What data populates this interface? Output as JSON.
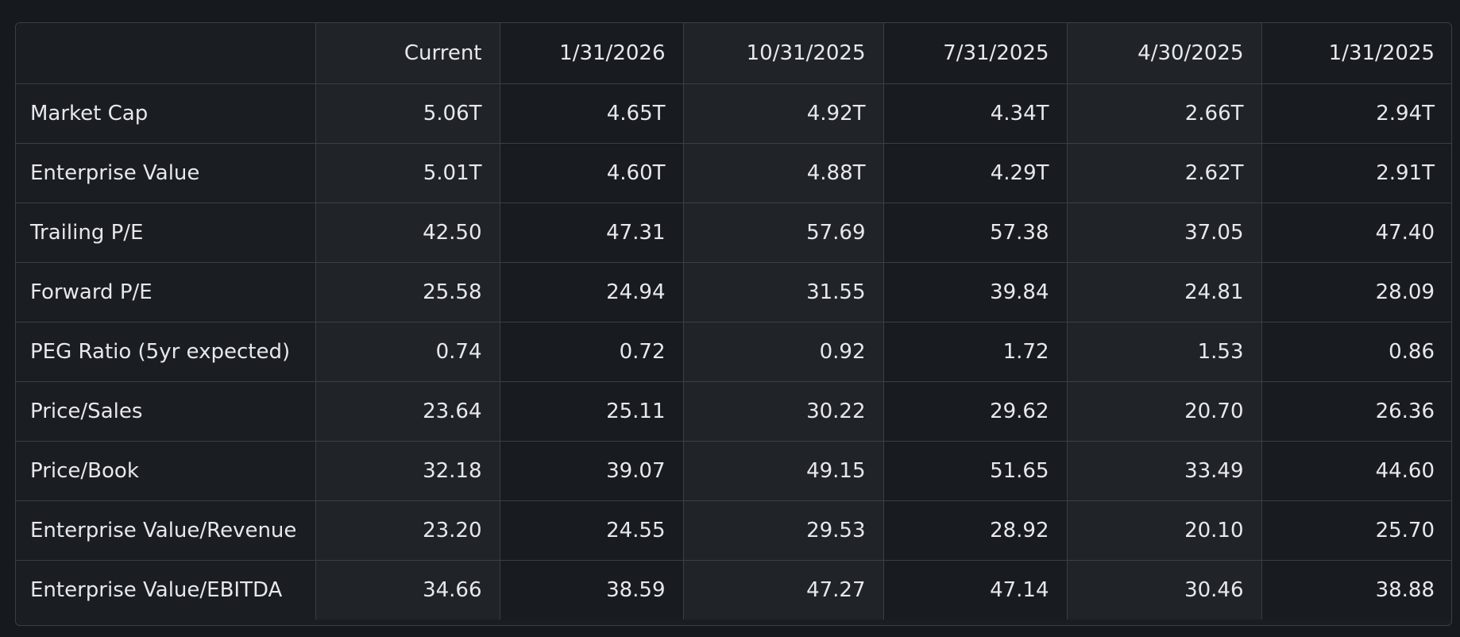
{
  "table": {
    "corner_label": "",
    "columns": [
      "Current",
      "1/31/2026",
      "10/31/2025",
      "7/31/2025",
      "4/30/2025",
      "1/31/2025"
    ],
    "rows": [
      {
        "label": "Market Cap",
        "values": [
          "5.06T",
          "4.65T",
          "4.92T",
          "4.34T",
          "2.66T",
          "2.94T"
        ]
      },
      {
        "label": "Enterprise Value",
        "values": [
          "5.01T",
          "4.60T",
          "4.88T",
          "4.29T",
          "2.62T",
          "2.91T"
        ]
      },
      {
        "label": "Trailing P/E",
        "values": [
          "42.50",
          "47.31",
          "57.69",
          "57.38",
          "37.05",
          "47.40"
        ]
      },
      {
        "label": "Forward P/E",
        "values": [
          "25.58",
          "24.94",
          "31.55",
          "39.84",
          "24.81",
          "28.09"
        ]
      },
      {
        "label": "PEG Ratio (5yr expected)",
        "values": [
          "0.74",
          "0.72",
          "0.92",
          "1.72",
          "1.53",
          "0.86"
        ]
      },
      {
        "label": "Price/Sales",
        "values": [
          "23.64",
          "25.11",
          "30.22",
          "29.62",
          "20.70",
          "26.36"
        ]
      },
      {
        "label": "Price/Book",
        "values": [
          "32.18",
          "39.07",
          "49.15",
          "51.65",
          "33.49",
          "44.60"
        ]
      },
      {
        "label": "Enterprise Value/Revenue",
        "values": [
          "23.20",
          "24.55",
          "29.53",
          "28.92",
          "20.10",
          "25.70"
        ]
      },
      {
        "label": "Enterprise Value/EBITDA",
        "values": [
          "34.66",
          "38.59",
          "47.27",
          "47.14",
          "30.46",
          "38.88"
        ]
      }
    ]
  }
}
